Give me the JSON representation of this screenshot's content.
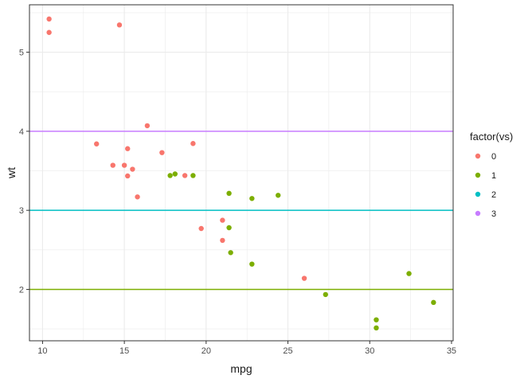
{
  "chart_data": {
    "type": "scatter",
    "xlabel": "mpg",
    "ylabel": "wt",
    "xlim": [
      9.2,
      35.1
    ],
    "ylim": [
      1.35,
      5.6
    ],
    "x_ticks": [
      10,
      15,
      20,
      25,
      30,
      35
    ],
    "y_ticks": [
      2,
      3,
      4,
      5
    ],
    "x_tick_labels": [
      "10",
      "15",
      "20",
      "25",
      "30",
      "35"
    ],
    "y_tick_labels": [
      "2",
      "3",
      "4",
      "5"
    ],
    "grid": true,
    "legend_placement": "right",
    "legend": {
      "title": "factor(vs)",
      "entries": [
        {
          "label": "0",
          "color": "#F8766D"
        },
        {
          "label": "1",
          "color": "#7CAE00"
        },
        {
          "label": "2",
          "color": "#00BFC4"
        },
        {
          "label": "3",
          "color": "#C77CFF"
        }
      ]
    },
    "series": [
      {
        "name": "0",
        "color": "#F8766D",
        "points": [
          [
            10.4,
            5.42
          ],
          [
            10.4,
            5.25
          ],
          [
            14.7,
            5.345
          ],
          [
            16.4,
            4.07
          ],
          [
            13.3,
            3.84
          ],
          [
            15.2,
            3.78
          ],
          [
            19.2,
            3.845
          ],
          [
            17.3,
            3.73
          ],
          [
            14.3,
            3.57
          ],
          [
            15.0,
            3.57
          ],
          [
            15.5,
            3.52
          ],
          [
            15.2,
            3.435
          ],
          [
            18.7,
            3.44
          ],
          [
            15.8,
            3.17
          ],
          [
            21.0,
            2.875
          ],
          [
            19.7,
            2.77
          ],
          [
            21.0,
            2.62
          ],
          [
            26.0,
            2.14
          ]
        ]
      },
      {
        "name": "1",
        "color": "#7CAE00",
        "points": [
          [
            17.8,
            3.44
          ],
          [
            18.1,
            3.46
          ],
          [
            19.2,
            3.44
          ],
          [
            21.4,
            3.215
          ],
          [
            24.4,
            3.19
          ],
          [
            22.8,
            3.15
          ],
          [
            21.4,
            2.78
          ],
          [
            21.5,
            2.465
          ],
          [
            22.8,
            2.32
          ],
          [
            32.4,
            2.2
          ],
          [
            27.3,
            1.935
          ],
          [
            33.9,
            1.835
          ],
          [
            30.4,
            1.615
          ],
          [
            30.4,
            1.513
          ]
        ]
      }
    ],
    "hlines": [
      {
        "y": 2,
        "color": "#7CAE00",
        "group": "1"
      },
      {
        "y": 3,
        "color": "#00BFC4",
        "group": "2"
      },
      {
        "y": 4,
        "color": "#C77CFF",
        "group": "3"
      }
    ]
  }
}
